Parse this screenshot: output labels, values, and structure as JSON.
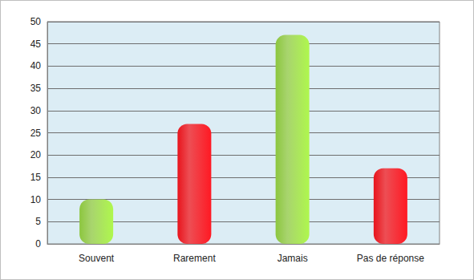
{
  "chart_data": {
    "type": "bar",
    "categories": [
      "Souvent",
      "Rarement",
      "Jamais",
      "Pas de réponse"
    ],
    "values": [
      10,
      27,
      47,
      17
    ],
    "colors": [
      "#8cc63e",
      "#e8141c",
      "#8cc63e",
      "#e8141c"
    ],
    "ylim": [
      0,
      50
    ],
    "yticks": [
      0,
      5,
      10,
      15,
      20,
      25,
      30,
      35,
      40,
      45,
      50
    ],
    "grid": true
  }
}
